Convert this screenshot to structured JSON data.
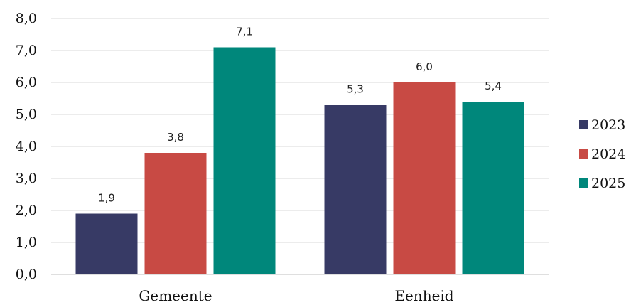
{
  "chart_data": {
    "type": "bar",
    "categories": [
      "Gemeente",
      "Eenheid"
    ],
    "series": [
      {
        "name": "2023",
        "values": [
          1.9,
          5.3
        ],
        "labels": [
          "1,9",
          "5,3"
        ],
        "color": "#373a65"
      },
      {
        "name": "2024",
        "values": [
          3.8,
          6.0
        ],
        "labels": [
          "3,8",
          "6,0"
        ],
        "color": "#c84a44"
      },
      {
        "name": "2025",
        "values": [
          7.1,
          5.4
        ],
        "labels": [
          "7,1",
          "5,4"
        ],
        "color": "#00877b"
      }
    ],
    "ylim": [
      0,
      8
    ],
    "yticks": [
      0,
      1,
      2,
      3,
      4,
      5,
      6,
      7,
      8
    ],
    "ytick_labels": [
      "0,0",
      "1,0",
      "2,0",
      "3,0",
      "4,0",
      "5,0",
      "6,0",
      "7,0",
      "8,0"
    ],
    "grid": true,
    "legend_position": "right",
    "title": "",
    "xlabel": "",
    "ylabel": ""
  }
}
